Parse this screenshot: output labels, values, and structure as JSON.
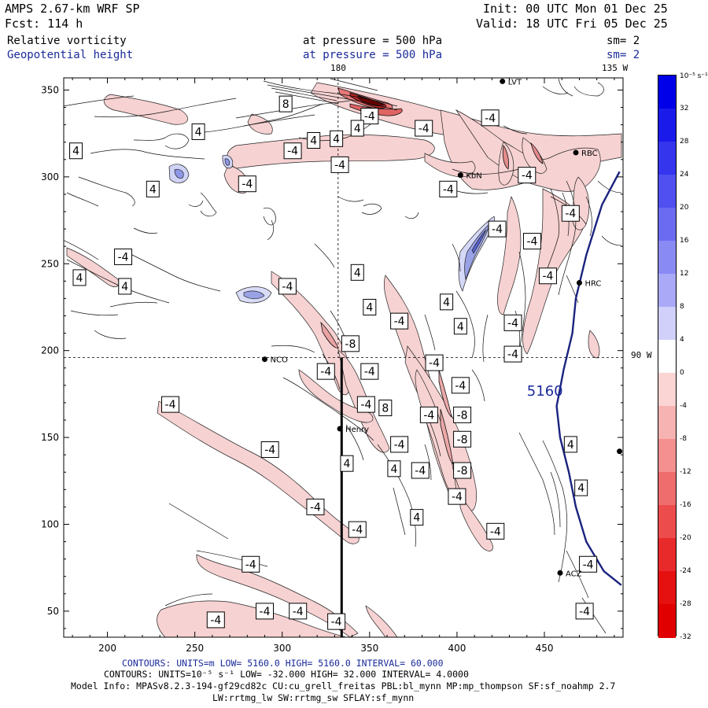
{
  "header": {
    "model": "AMPS 2.67-km WRF SP",
    "init": "Init: 00 UTC Mon 01 Dec 25",
    "forecast": "Fcst:  114 h",
    "valid": "Valid: 18 UTC Fri 05 Dec 25",
    "field1": {
      "name": "Relative vorticity",
      "level": "at pressure =  500 hPa",
      "smooth": "sm= 2"
    },
    "field2": {
      "name": "Geopotential height",
      "level": "at pressure =  500 hPa",
      "smooth": "sm= 2"
    }
  },
  "map": {
    "lon_labels": {
      "top": "180",
      "top_right": "135 W",
      "right": "90 W"
    },
    "x_ticks": [
      "200",
      "250",
      "300",
      "350",
      "400",
      "450"
    ],
    "y_ticks": [
      "350",
      "300",
      "250",
      "200",
      "150",
      "100",
      "50"
    ],
    "stations": [
      {
        "name": "NCO"
      },
      {
        "name": "Henry"
      },
      {
        "name": "KbN"
      },
      {
        "name": "RBC"
      },
      {
        "name": "HRC"
      },
      {
        "name": "ACZ"
      },
      {
        "name": "LVT"
      },
      {
        "name": ""
      }
    ],
    "height_contour_label": "5160"
  },
  "colorbar": {
    "unit": "10⁻⁵ s⁻¹",
    "labels": [
      "32",
      "28",
      "24",
      "20",
      "16",
      "12",
      "8",
      "4",
      "0",
      "-4",
      "-8",
      "-12",
      "-16",
      "-20",
      "-24",
      "-28",
      "-32"
    ]
  },
  "footer": {
    "line1": "CONTOURS: UNITS=m  LOW=  5160.0         HIGH=  5160.0       INTERVAL=   60.000",
    "line2": "CONTOURS: UNITS=10⁻⁵ s⁻¹  LOW= -32.000        HIGH= 32.000        INTERVAL=  4.0000",
    "line3": "Model Info: MPASv8.2.3-194-gf29cd82c CU:cu_grell_freitas PBL:bl_mynn MP:mp_thompson SF:sf_noahmp 2.7",
    "line4": "LW:rrtmg_lw SW:rrtmg_sw SFLAY:sf_mynn"
  },
  "chart_data": {
    "type": "contour_map",
    "title": "Relative vorticity / Geopotential height at 500 hPa",
    "xlim": [
      175,
      495
    ],
    "ylim": [
      35,
      357
    ],
    "x_ticks": [
      200,
      250,
      300,
      350,
      400,
      450
    ],
    "y_ticks": [
      50,
      100,
      150,
      200,
      250,
      300,
      350
    ],
    "height_contour": {
      "value": 5160,
      "units": "m",
      "points": [
        [
          493,
          303
        ],
        [
          483,
          284
        ],
        [
          474,
          255
        ],
        [
          468,
          230
        ],
        [
          466,
          210
        ],
        [
          461,
          189
        ],
        [
          457,
          168
        ],
        [
          459,
          150
        ],
        [
          464,
          130
        ],
        [
          468,
          110
        ],
        [
          474,
          90
        ],
        [
          484,
          73
        ],
        [
          494,
          65
        ]
      ]
    },
    "vorticity_labels": [
      {
        "v": "8",
        "x": 302,
        "y": 342
      },
      {
        "v": "-4",
        "x": 350,
        "y": 335
      },
      {
        "v": "4",
        "x": 343,
        "y": 328
      },
      {
        "v": "-4",
        "x": 381,
        "y": 328
      },
      {
        "v": "-4",
        "x": 419,
        "y": 334
      },
      {
        "v": "4",
        "x": 252,
        "y": 326
      },
      {
        "v": "4",
        "x": 318,
        "y": 321
      },
      {
        "v": "-4",
        "x": 306,
        "y": 315
      },
      {
        "v": "4",
        "x": 331,
        "y": 322
      },
      {
        "v": "4",
        "x": 182,
        "y": 315
      },
      {
        "v": "-4",
        "x": 333,
        "y": 307
      },
      {
        "v": "-4",
        "x": 280,
        "y": 296
      },
      {
        "v": "-4",
        "x": 440,
        "y": 301
      },
      {
        "v": "4",
        "x": 226,
        "y": 293
      },
      {
        "v": "-4",
        "x": 395,
        "y": 293
      },
      {
        "v": "-4",
        "x": 465,
        "y": 279
      },
      {
        "v": "-4",
        "x": 423,
        "y": 270
      },
      {
        "v": "-4",
        "x": 443,
        "y": 263
      },
      {
        "v": "-4",
        "x": 209,
        "y": 254
      },
      {
        "v": "-4",
        "x": 452,
        "y": 243
      },
      {
        "v": "4",
        "x": 343,
        "y": 245
      },
      {
        "v": "4",
        "x": 184,
        "y": 242
      },
      {
        "v": "4",
        "x": 210,
        "y": 237
      },
      {
        "v": "-4",
        "x": 303,
        "y": 237
      },
      {
        "v": "4",
        "x": 394,
        "y": 228
      },
      {
        "v": "4",
        "x": 350,
        "y": 225
      },
      {
        "v": "-4",
        "x": 367,
        "y": 217
      },
      {
        "v": "-4",
        "x": 432,
        "y": 216
      },
      {
        "v": "4",
        "x": 402,
        "y": 214
      },
      {
        "v": "-8",
        "x": 339,
        "y": 204
      },
      {
        "v": "-4",
        "x": 432,
        "y": 198
      },
      {
        "v": "-4",
        "x": 387,
        "y": 193
      },
      {
        "v": "-4",
        "x": 325,
        "y": 188
      },
      {
        "v": "-4",
        "x": 350,
        "y": 188
      },
      {
        "v": "-4",
        "x": 402,
        "y": 180
      },
      {
        "v": "-4",
        "x": 236,
        "y": 169
      },
      {
        "v": "-4",
        "x": 348,
        "y": 169
      },
      {
        "v": "8",
        "x": 359,
        "y": 167
      },
      {
        "v": "-4",
        "x": 384,
        "y": 163
      },
      {
        "v": "-8",
        "x": 403,
        "y": 163
      },
      {
        "v": "-8",
        "x": 403,
        "y": 149
      },
      {
        "v": "4",
        "x": 465,
        "y": 146
      },
      {
        "v": "-4",
        "x": 367,
        "y": 146
      },
      {
        "v": "-4",
        "x": 293,
        "y": 143
      },
      {
        "v": "4",
        "x": 337,
        "y": 135
      },
      {
        "v": "-4",
        "x": 379,
        "y": 131
      },
      {
        "v": "-8",
        "x": 403,
        "y": 131
      },
      {
        "v": "4",
        "x": 364,
        "y": 132
      },
      {
        "v": "4",
        "x": 471,
        "y": 121
      },
      {
        "v": "-4",
        "x": 400,
        "y": 116
      },
      {
        "v": "-4",
        "x": 319,
        "y": 110
      },
      {
        "v": "4",
        "x": 377,
        "y": 104
      },
      {
        "v": "-4",
        "x": 343,
        "y": 97
      },
      {
        "v": "-4",
        "x": 422,
        "y": 96
      },
      {
        "v": "-4",
        "x": 282,
        "y": 77
      },
      {
        "v": "-4",
        "x": 475,
        "y": 77
      },
      {
        "v": "-4",
        "x": 290,
        "y": 50
      },
      {
        "v": "-4",
        "x": 309,
        "y": 50
      },
      {
        "v": "-4",
        "x": 473,
        "y": 50
      },
      {
        "v": "-4",
        "x": 262,
        "y": 45
      },
      {
        "v": "-4",
        "x": 331,
        "y": 44
      }
    ],
    "stations": [
      {
        "name": "NCO",
        "x": 290,
        "y": 195
      },
      {
        "name": "Henry",
        "x": 333,
        "y": 155
      },
      {
        "name": "KbN",
        "x": 402,
        "y": 301
      },
      {
        "name": "RBC",
        "x": 468,
        "y": 314
      },
      {
        "name": "HRC",
        "x": 470,
        "y": 239
      },
      {
        "name": "ACZ",
        "x": 459,
        "y": 72
      },
      {
        "name": "LVT",
        "x": 426,
        "y": 355
      },
      {
        "name": "",
        "x": 493,
        "y": 142
      }
    ],
    "cross_section_x": 334,
    "reference_lines": {
      "x": 332,
      "y": 196
    },
    "colorbar": {
      "min": -32,
      "max": 32,
      "interval": 4,
      "units": "1e-5 s-1"
    }
  }
}
